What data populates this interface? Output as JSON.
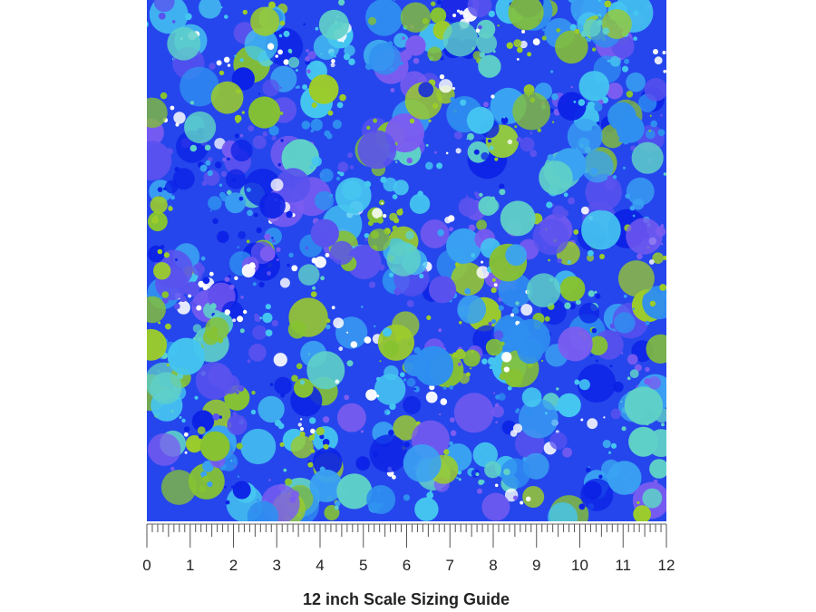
{
  "ruler": {
    "labels": [
      0,
      1,
      2,
      3,
      4,
      5,
      6,
      7,
      8,
      9,
      10,
      11,
      12
    ]
  },
  "caption": "12 inch Scale Sizing Guide"
}
